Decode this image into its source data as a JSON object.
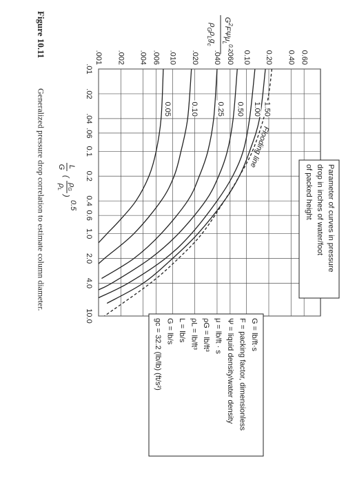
{
  "chart_data": {
    "type": "line",
    "title": "Figure 10.11",
    "caption": "Generalized pressure drop correlation to estimate column diameter.",
    "ylabel": {
      "numerator": [
        "G",
        "2",
        "FΨμ",
        "L",
        "0.2"
      ],
      "denominator": [
        "ρ",
        "G",
        "ρ",
        "L",
        "g",
        "c"
      ]
    },
    "xlabel": {
      "fraction": [
        "L",
        "G"
      ],
      "ratio": [
        "ρ",
        "G",
        "ρ",
        "L"
      ],
      "exponent": "0.5"
    },
    "xscale": "log",
    "yscale": "log",
    "grid": true,
    "xlim": [
      0.01,
      10
    ],
    "ylim": [
      0.001,
      1
    ],
    "xticks": [
      {
        "value": 0.01,
        "label": ".01"
      },
      {
        "value": 0.02,
        "label": ".02"
      },
      {
        "value": 0.04,
        "label": ".04"
      },
      {
        "value": 0.06,
        "label": ".06"
      },
      0.1,
      0.2,
      0.4,
      0.6,
      {
        "value": 1,
        "label": "1.0"
      },
      {
        "value": 2,
        "label": "2.0"
      },
      {
        "value": 4,
        "label": "4.0"
      },
      {
        "value": 10,
        "label": "10.0"
      }
    ],
    "yticks": [
      {
        "value": 0.001,
        "label": ".001"
      },
      {
        "value": 0.002,
        "label": ".002"
      },
      {
        "value": 0.004,
        "label": ".004"
      },
      {
        "value": 0.006,
        "label": ".006"
      },
      {
        "value": 0.01,
        "label": ".010"
      },
      {
        "value": 0.02,
        "label": ".020"
      },
      {
        "value": 0.04,
        "label": ".040"
      },
      {
        "value": 0.06,
        "label": ".060"
      },
      {
        "value": 0.1,
        "label": "0.10"
      },
      {
        "value": 0.2,
        "label": "0.20"
      },
      {
        "value": 0.4,
        "label": "0.40"
      },
      {
        "value": 0.6,
        "label": "0.60"
      }
    ],
    "series": [
      {
        "name": "0.05",
        "color": "#222",
        "x": [
          0.01,
          0.04,
          0.1,
          0.2,
          0.4,
          0.7,
          1.0,
          1.6
        ],
        "values": [
          0.0075,
          0.007,
          0.006,
          0.0048,
          0.0032,
          0.0019,
          0.0013,
          0.0008
        ]
      },
      {
        "name": "0.10",
        "color": "#222",
        "x": [
          0.01,
          0.04,
          0.1,
          0.2,
          0.4,
          1.0,
          2.0,
          2.8
        ],
        "values": [
          0.018,
          0.016,
          0.013,
          0.0105,
          0.007,
          0.003,
          0.0012,
          0.0008
        ]
      },
      {
        "name": "0.25",
        "color": "#222",
        "x": [
          0.01,
          0.04,
          0.1,
          0.2,
          0.4,
          1.0,
          2.0,
          3.5
        ],
        "values": [
          0.04,
          0.036,
          0.03,
          0.023,
          0.016,
          0.007,
          0.003,
          0.0011
        ]
      },
      {
        "name": "0.50",
        "color": "#222",
        "x": [
          0.01,
          0.04,
          0.1,
          0.2,
          0.4,
          1.0,
          2.0,
          4.0,
          5.0
        ],
        "values": [
          0.075,
          0.066,
          0.055,
          0.042,
          0.028,
          0.012,
          0.005,
          0.0015,
          0.0009
        ]
      },
      {
        "name": "1.00",
        "color": "#222",
        "x": [
          0.01,
          0.04,
          0.1,
          0.2,
          0.4,
          1.0,
          2.0,
          4.0,
          6.0
        ],
        "values": [
          0.13,
          0.11,
          0.09,
          0.065,
          0.04,
          0.018,
          0.008,
          0.0025,
          0.001
        ]
      },
      {
        "name": "1.50",
        "color": "#222",
        "x": [
          0.01,
          0.04,
          0.1,
          0.2,
          0.4,
          1.0,
          2.0,
          4.0,
          7.0
        ],
        "values": [
          0.18,
          0.15,
          0.11,
          0.08,
          0.05,
          0.022,
          0.01,
          0.004,
          0.0013
        ]
      },
      {
        "name": "Flooding line",
        "color": "#222",
        "dashed": true,
        "x": [
          0.01,
          0.02,
          0.04,
          0.1,
          0.2,
          0.4,
          1.0,
          2.0,
          4.0,
          10.0
        ],
        "values": [
          0.22,
          0.2,
          0.17,
          0.12,
          0.08,
          0.05,
          0.025,
          0.012,
          0.005,
          0.0012
        ]
      }
    ],
    "legend": [
      "Parameter of curves in pressure",
      "drop in inches of water/foot",
      "of packed height"
    ],
    "units": [
      "G = lb/ft·s",
      "F = packing factor, dimensionless",
      "Ψ = liquid density/water density",
      "μ = lb/ft · s",
      "ρG = lb/ft³",
      "ρL = lb/ft³",
      "L = lb/s",
      "G = lb/s",
      "gc = 32.2 (lb/lb) (ft/s²)"
    ]
  }
}
